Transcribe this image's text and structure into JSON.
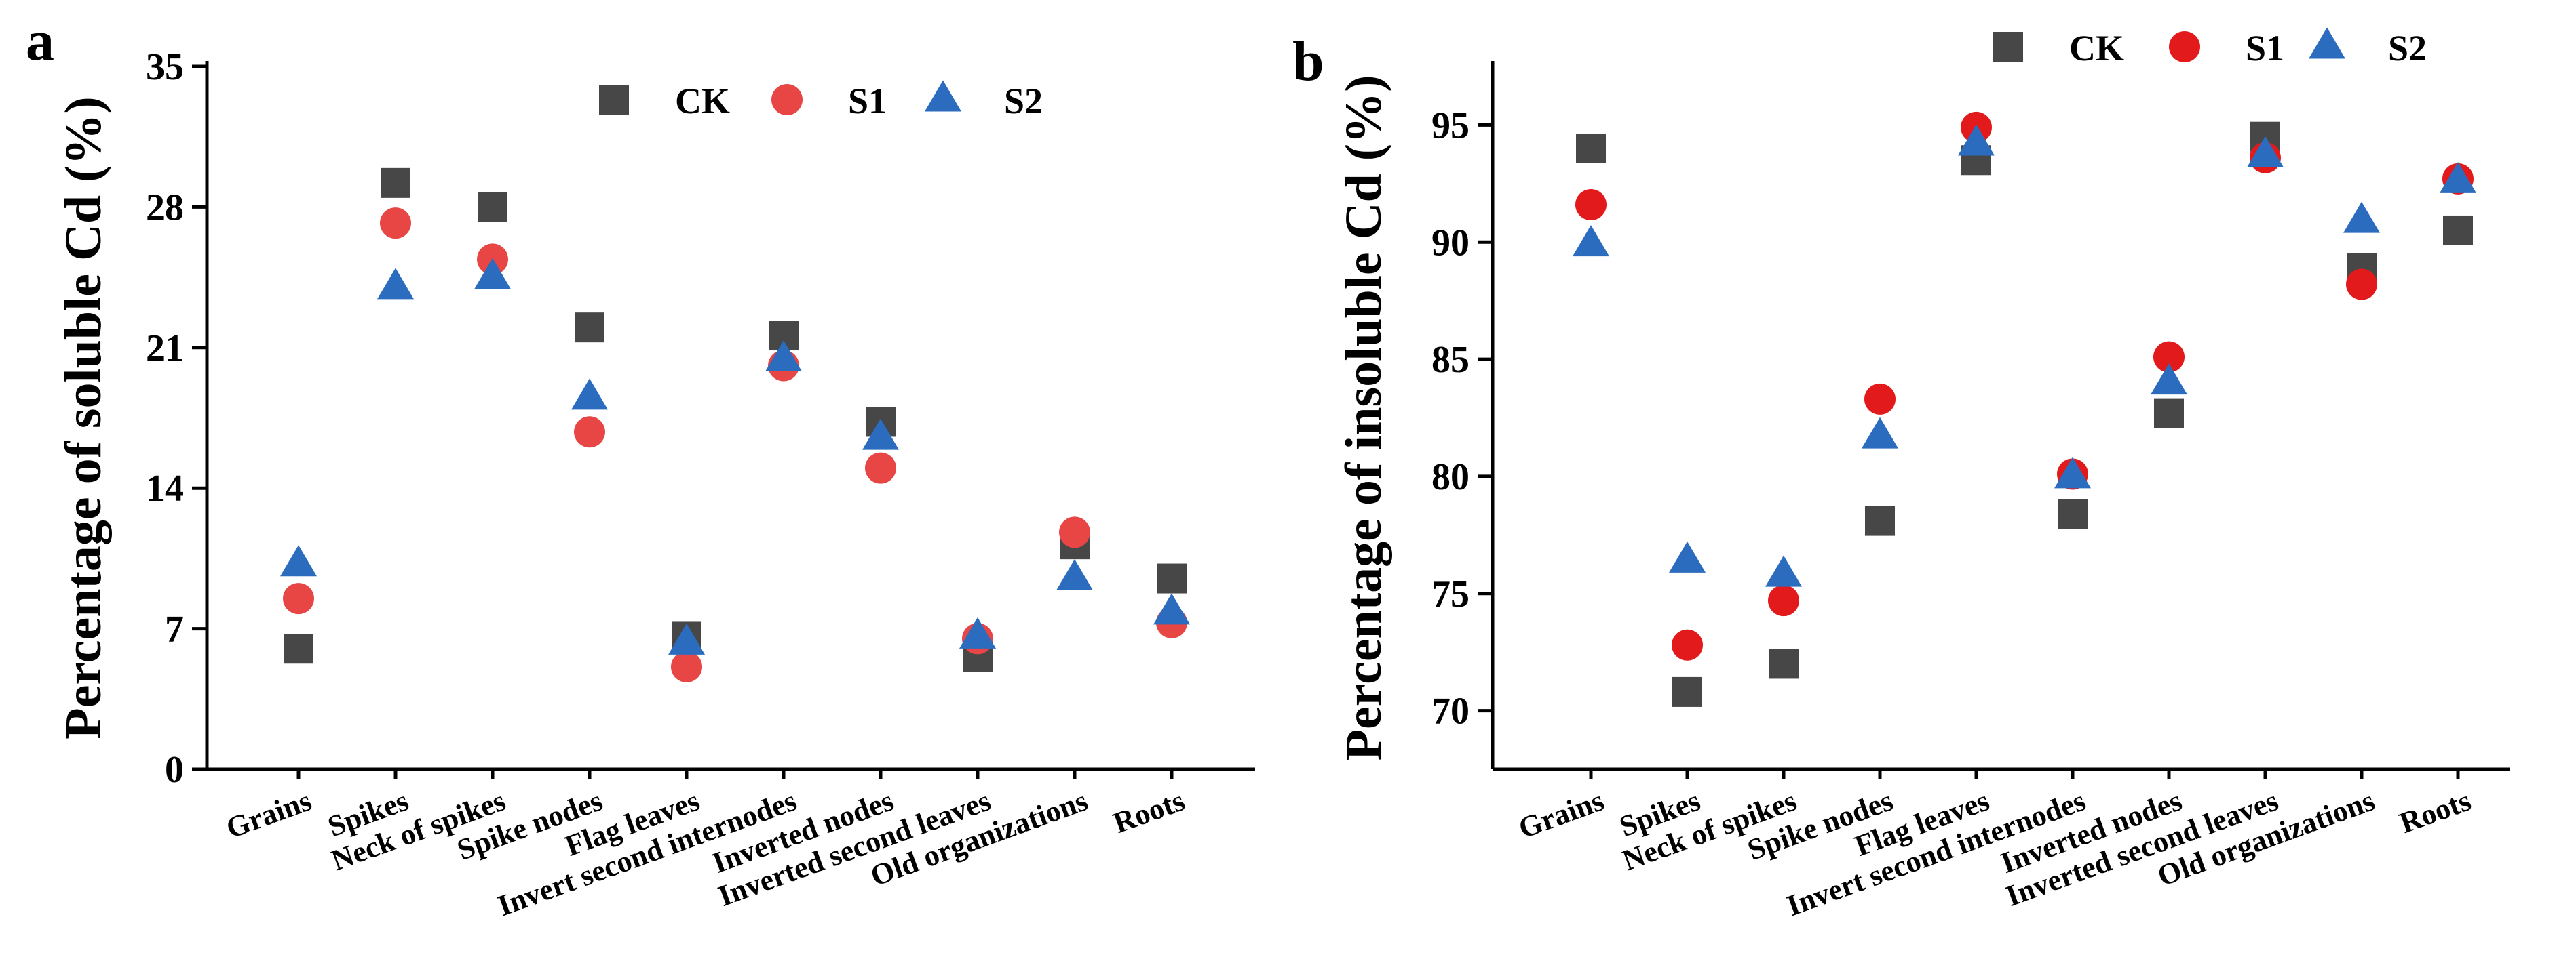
{
  "chart_data": [
    {
      "type": "scatter",
      "panel": "a",
      "title": "",
      "xlabel": "",
      "ylabel": "Percentage of soluble Cd (%)",
      "ylim": [
        0,
        35
      ],
      "yticks": [
        0,
        7,
        14,
        21,
        28,
        35
      ],
      "ytick_labels": [
        "0",
        "7",
        "14",
        "21",
        "28",
        "35"
      ],
      "categories": [
        "Grains",
        "Spikes",
        "Neck of spikes",
        "Spike nodes",
        "Flag leaves",
        "Invert second internodes",
        "Inverted nodes",
        "Inverted second leaves",
        "Old organizations",
        "Roots"
      ],
      "legend": {
        "position": "top-center"
      },
      "series": [
        {
          "name": "CK",
          "marker": "square",
          "color": "#474747",
          "values": [
            6.0,
            29.2,
            28.0,
            22.0,
            6.6,
            21.6,
            17.3,
            5.6,
            11.2,
            9.5
          ]
        },
        {
          "name": "S1",
          "marker": "circle",
          "color": "#e84545",
          "values": [
            8.5,
            27.2,
            25.4,
            16.8,
            5.1,
            20.1,
            15.0,
            6.5,
            11.8,
            7.3
          ]
        },
        {
          "name": "S2",
          "marker": "triangle",
          "color": "#2b6cbf",
          "values": [
            10.2,
            24.0,
            24.5,
            18.5,
            6.3,
            20.4,
            16.5,
            6.6,
            9.5,
            7.8
          ]
        }
      ]
    },
    {
      "type": "scatter",
      "panel": "b",
      "title": "",
      "xlabel": "",
      "ylabel": "Percentage of insoluble Cd (%)",
      "ylim": [
        67.5,
        97.5
      ],
      "yticks": [
        70,
        75,
        80,
        85,
        90,
        95
      ],
      "ytick_labels": [
        "70",
        "75",
        "80",
        "85",
        "90",
        "95"
      ],
      "categories": [
        "Grains",
        "Spikes",
        "Neck of spikes",
        "Spike nodes",
        "Flag leaves",
        "Invert second internodes",
        "Inverted nodes",
        "Inverted second leaves",
        "Old organizations",
        "Roots"
      ],
      "legend": {
        "position": "top-right"
      },
      "series": [
        {
          "name": "CK",
          "marker": "square",
          "color": "#474747",
          "values": [
            94.0,
            70.8,
            72.0,
            78.1,
            93.5,
            78.4,
            82.7,
            94.5,
            88.9,
            90.5
          ]
        },
        {
          "name": "S1",
          "marker": "circle",
          "color": "#e31a1c",
          "values": [
            91.6,
            72.8,
            74.7,
            83.3,
            94.9,
            80.1,
            85.1,
            93.6,
            88.2,
            92.7
          ]
        },
        {
          "name": "S2",
          "marker": "triangle",
          "color": "#2b6cbf",
          "values": [
            89.9,
            76.4,
            75.8,
            81.7,
            94.2,
            80.0,
            84.0,
            93.7,
            90.9,
            92.6
          ]
        }
      ]
    }
  ]
}
